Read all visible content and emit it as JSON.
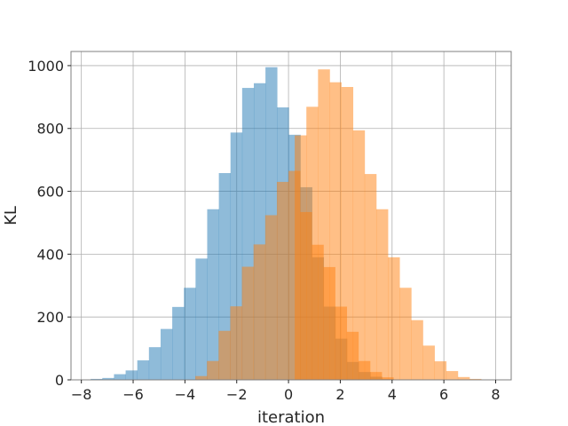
{
  "chart_data": {
    "type": "histogram",
    "xlabel": "iteration",
    "ylabel": "KL",
    "xlim": [
      -8.4,
      8.6
    ],
    "ylim": [
      0,
      1045
    ],
    "x_ticks": [
      -8,
      -6,
      -4,
      -2,
      0,
      2,
      4,
      6,
      8
    ],
    "x_tick_labels": [
      "−8",
      "−6",
      "−4",
      "−2",
      "0",
      "2",
      "4",
      "6",
      "8"
    ],
    "y_ticks": [
      0,
      200,
      400,
      600,
      800,
      1000
    ],
    "y_tick_labels": [
      "0",
      "200",
      "400",
      "600",
      "800",
      "1000"
    ],
    "grid": true,
    "bin_width": 0.45,
    "series": [
      {
        "color": "#1f77b4",
        "alpha": 0.5,
        "bin_start": -7.64,
        "values": [
          3,
          6,
          18,
          30,
          62,
          104,
          162,
          232,
          293,
          386,
          543,
          658,
          787,
          929,
          944,
          995,
          867,
          780,
          613,
          390,
          233,
          131,
          57,
          25,
          10,
          3
        ]
      },
      {
        "color": "#ff7f0e",
        "alpha": 0.5,
        "bin_start": -3.6,
        "values": [
          12,
          60,
          156,
          234,
          360,
          431,
          524,
          630,
          665,
          534,
          430,
          359,
          233,
          153,
          60,
          25,
          8
        ]
      },
      {
        "color": "#ff7f0e",
        "alpha": 0.5,
        "bin_start": 0.24,
        "values_above_overlap": [
          778,
          869,
          988,
          947,
          932,
          794,
          655,
          543,
          390,
          293,
          190,
          109,
          59,
          28,
          9,
          3
        ]
      }
    ]
  }
}
